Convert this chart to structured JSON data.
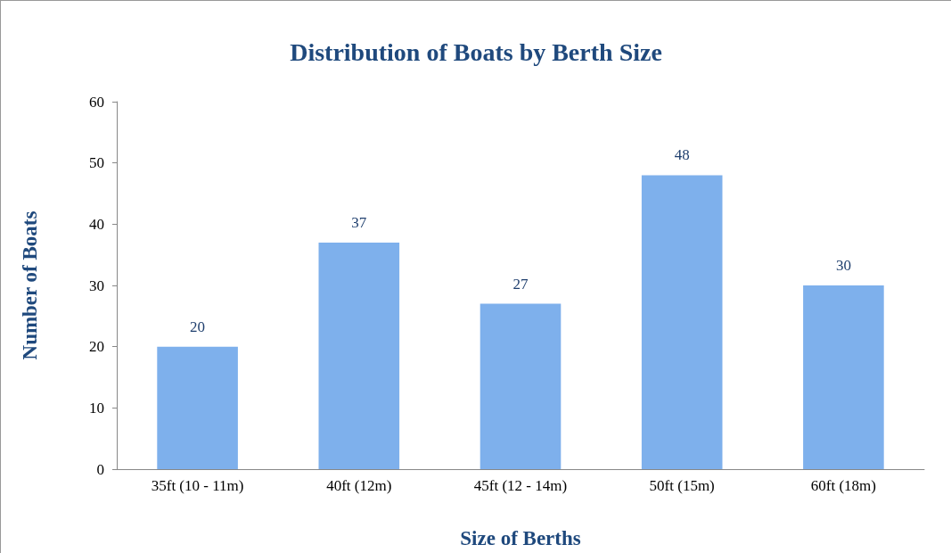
{
  "chart_data": {
    "type": "bar",
    "title": "Distribution of Boats by Berth Size",
    "xlabel": "Size of Berths",
    "ylabel": "Number of Boats",
    "categories": [
      "35ft (10 - 11m)",
      "40ft (12m)",
      "45ft (12 - 14m)",
      "50ft (15m)",
      "60ft (18m)"
    ],
    "values": [
      20,
      37,
      27,
      48,
      30
    ],
    "color": "#7eb0ec",
    "ylim": [
      0,
      60
    ],
    "yticks": [
      0,
      10,
      20,
      30,
      40,
      50,
      60
    ],
    "grid": false,
    "data_labels": true
  }
}
